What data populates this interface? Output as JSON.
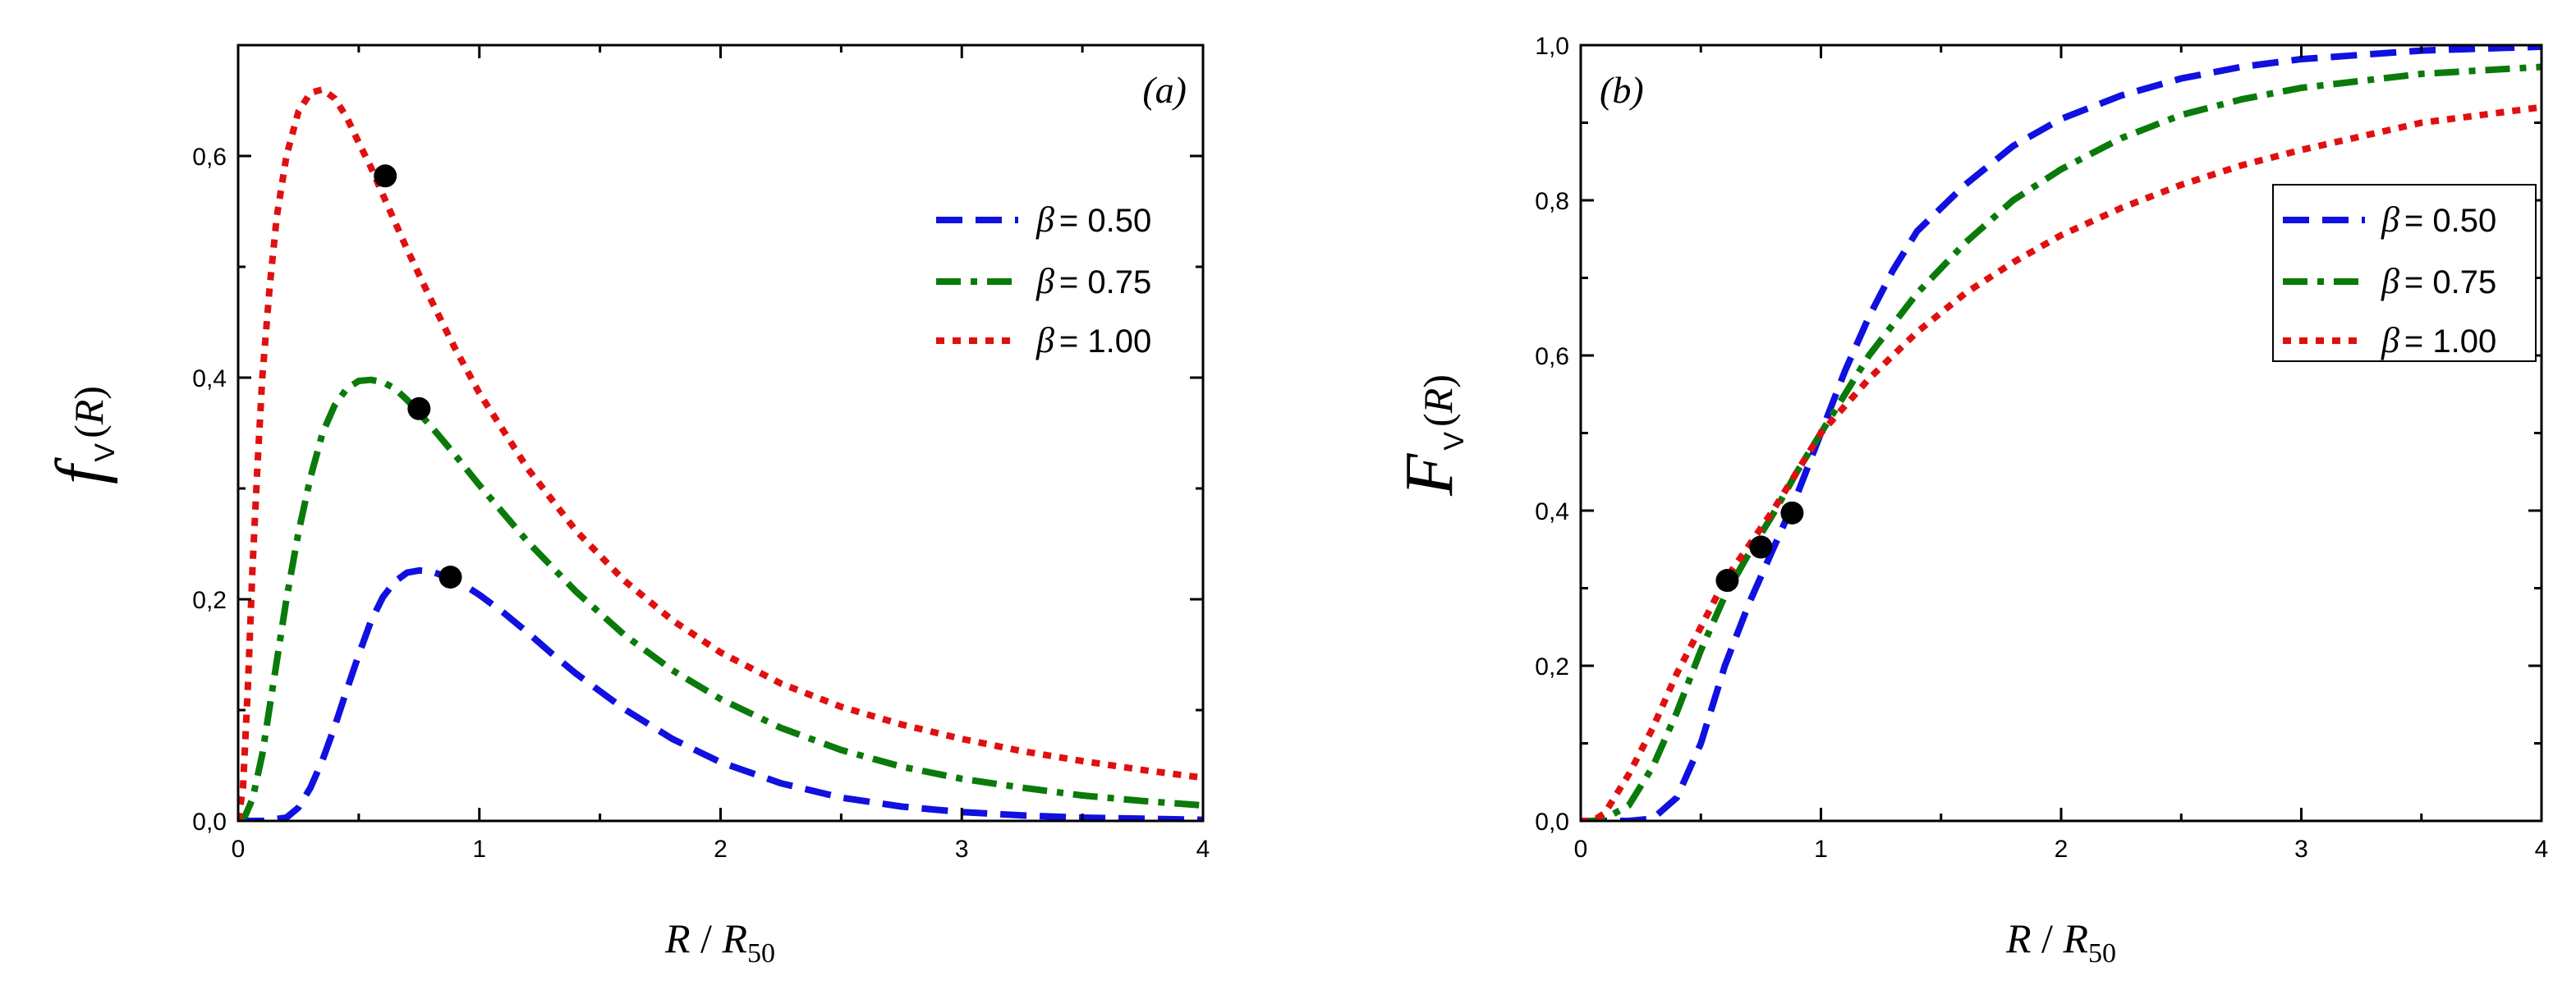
{
  "chart_data": [
    {
      "id": "a",
      "type": "line",
      "panel_label": "(a)",
      "ylabel": {
        "symbol": "f",
        "subscript": "V",
        "argument": "R"
      },
      "xlabel": {
        "var": "R",
        "slash": " / ",
        "ref": "R",
        "ref_sub": "50"
      },
      "xlim": [
        0,
        4
      ],
      "ylim": [
        0,
        0.7
      ],
      "x_ticks": [
        0,
        1,
        2,
        3,
        4
      ],
      "x_tick_labels": [
        "0",
        "1",
        "2",
        "3",
        "4"
      ],
      "y_ticks": [
        0,
        0.2,
        0.4,
        0.6
      ],
      "y_tick_labels": [
        "0,0",
        "0,2",
        "0,4",
        "0,6"
      ],
      "legend_position": "top-right",
      "series": [
        {
          "name": "β = 0.50",
          "beta_symbol": "β",
          "beta_value": "= 0.50",
          "color": "#1010e0",
          "dash": "dashed",
          "x": [
            0,
            0.1,
            0.2,
            0.25,
            0.3,
            0.35,
            0.4,
            0.45,
            0.5,
            0.55,
            0.6,
            0.65,
            0.7,
            0.75,
            0.8,
            0.9,
            1.0,
            1.1,
            1.2,
            1.3,
            1.4,
            1.6,
            1.8,
            2.0,
            2.25,
            2.5,
            2.75,
            3.0,
            3.25,
            3.5,
            3.75,
            4.0
          ],
          "y": [
            0,
            0.0,
            0.003,
            0.012,
            0.03,
            0.055,
            0.085,
            0.118,
            0.15,
            0.18,
            0.202,
            0.216,
            0.224,
            0.226,
            0.225,
            0.218,
            0.204,
            0.188,
            0.17,
            0.151,
            0.133,
            0.101,
            0.074,
            0.053,
            0.034,
            0.021,
            0.013,
            0.008,
            0.005,
            0.003,
            0.002,
            0.001
          ]
        },
        {
          "name": "β = 0.75",
          "beta_symbol": "β",
          "beta_value": "= 0.75",
          "color": "#0a7a0a",
          "dash": "dashdot",
          "x": [
            0,
            0.03,
            0.06,
            0.1,
            0.15,
            0.2,
            0.25,
            0.3,
            0.35,
            0.4,
            0.45,
            0.5,
            0.55,
            0.6,
            0.65,
            0.7,
            0.8,
            0.9,
            1.0,
            1.2,
            1.4,
            1.6,
            1.8,
            2.0,
            2.25,
            2.5,
            2.75,
            3.0,
            3.25,
            3.5,
            3.75,
            4.0
          ],
          "y": [
            0,
            0.005,
            0.02,
            0.06,
            0.13,
            0.2,
            0.26,
            0.31,
            0.35,
            0.375,
            0.39,
            0.397,
            0.398,
            0.396,
            0.39,
            0.38,
            0.356,
            0.33,
            0.303,
            0.252,
            0.207,
            0.168,
            0.136,
            0.11,
            0.084,
            0.064,
            0.049,
            0.038,
            0.03,
            0.023,
            0.018,
            0.014
          ]
        },
        {
          "name": "β = 1.00",
          "beta_symbol": "β",
          "beta_value": "= 1.00",
          "color": "#e01010",
          "dash": "dotted",
          "x": [
            0,
            0.02,
            0.04,
            0.06,
            0.08,
            0.1,
            0.13,
            0.16,
            0.2,
            0.25,
            0.3,
            0.35,
            0.4,
            0.45,
            0.5,
            0.55,
            0.6,
            0.7,
            0.8,
            0.9,
            1.0,
            1.2,
            1.4,
            1.6,
            1.8,
            2.0,
            2.25,
            2.5,
            2.75,
            3.0,
            3.25,
            3.5,
            3.75,
            4.0
          ],
          "y": [
            0,
            0.03,
            0.12,
            0.23,
            0.32,
            0.4,
            0.48,
            0.545,
            0.6,
            0.64,
            0.657,
            0.66,
            0.652,
            0.635,
            0.612,
            0.59,
            0.565,
            0.516,
            0.47,
            0.426,
            0.386,
            0.318,
            0.262,
            0.217,
            0.181,
            0.152,
            0.124,
            0.103,
            0.087,
            0.074,
            0.063,
            0.054,
            0.046,
            0.039
          ]
        }
      ],
      "markers": {
        "x": [
          0.61,
          0.75,
          0.88
        ],
        "y": [
          0.582,
          0.372,
          0.22
        ]
      }
    },
    {
      "id": "b",
      "type": "line",
      "panel_label": "(b)",
      "ylabel": {
        "symbol": "F",
        "subscript": "V",
        "argument": "R"
      },
      "xlabel": {
        "var": "R",
        "slash": " / ",
        "ref": "R",
        "ref_sub": "50"
      },
      "xlim": [
        0,
        4
      ],
      "ylim": [
        0,
        1
      ],
      "x_ticks": [
        0,
        1,
        2,
        3,
        4
      ],
      "x_tick_labels": [
        "0",
        "1",
        "2",
        "3",
        "4"
      ],
      "y_ticks": [
        0,
        0.2,
        0.4,
        0.6,
        0.8,
        1.0
      ],
      "y_tick_labels": [
        "0,0",
        "0,2",
        "0,4",
        "0,6",
        "0,8",
        "1,0"
      ],
      "legend_position": "top-right",
      "series": [
        {
          "name": "β = 0.50",
          "beta_symbol": "β",
          "beta_value": "= 0.50",
          "color": "#1010e0",
          "dash": "dashed",
          "x": [
            0,
            0.2,
            0.3,
            0.4,
            0.5,
            0.6,
            0.7,
            0.8,
            0.9,
            1.0,
            1.1,
            1.2,
            1.3,
            1.4,
            1.6,
            1.8,
            2.0,
            2.25,
            2.5,
            2.75,
            3.0,
            3.5,
            4.0
          ],
          "y": [
            0,
            0.0,
            0.003,
            0.03,
            0.1,
            0.2,
            0.28,
            0.35,
            0.42,
            0.5,
            0.58,
            0.65,
            0.71,
            0.76,
            0.82,
            0.87,
            0.905,
            0.935,
            0.957,
            0.972,
            0.982,
            0.993,
            0.998
          ]
        },
        {
          "name": "β = 0.75",
          "beta_symbol": "β",
          "beta_value": "= 0.75",
          "color": "#0a7a0a",
          "dash": "dashdot",
          "x": [
            0,
            0.05,
            0.1,
            0.2,
            0.3,
            0.4,
            0.5,
            0.6,
            0.7,
            0.8,
            0.9,
            1.0,
            1.2,
            1.4,
            1.6,
            1.8,
            2.0,
            2.25,
            2.5,
            2.75,
            3.0,
            3.5,
            4.0
          ],
          "y": [
            0,
            0.0,
            0.003,
            0.02,
            0.07,
            0.14,
            0.22,
            0.29,
            0.345,
            0.395,
            0.45,
            0.5,
            0.6,
            0.68,
            0.745,
            0.8,
            0.84,
            0.88,
            0.91,
            0.93,
            0.945,
            0.963,
            0.972
          ]
        },
        {
          "name": "β = 1.00",
          "beta_symbol": "β",
          "beta_value": "= 1.00",
          "color": "#e01010",
          "dash": "dotted",
          "x": [
            0,
            0.05,
            0.1,
            0.2,
            0.3,
            0.4,
            0.5,
            0.6,
            0.7,
            0.8,
            0.9,
            1.0,
            1.2,
            1.4,
            1.6,
            1.8,
            2.0,
            2.25,
            2.5,
            2.75,
            3.0,
            3.5,
            4.0
          ],
          "y": [
            0,
            0.0,
            0.01,
            0.06,
            0.12,
            0.19,
            0.25,
            0.31,
            0.355,
            0.4,
            0.45,
            0.5,
            0.57,
            0.63,
            0.68,
            0.72,
            0.755,
            0.79,
            0.82,
            0.845,
            0.865,
            0.9,
            0.92
          ]
        }
      ],
      "markers": {
        "x": [
          0.61,
          0.75,
          0.88
        ],
        "y": [
          0.31,
          0.353,
          0.397
        ]
      }
    }
  ]
}
